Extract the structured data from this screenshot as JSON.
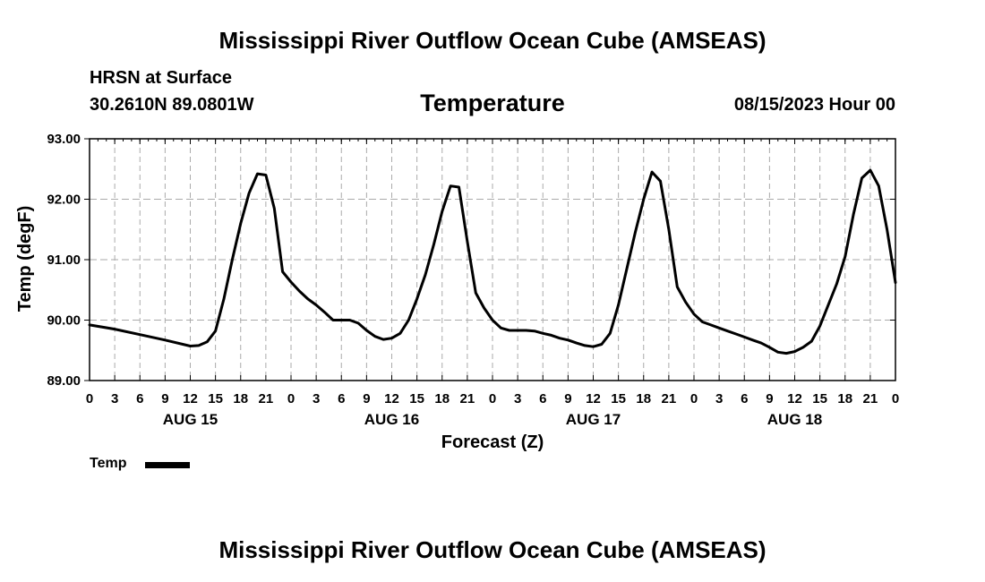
{
  "header": {
    "main_title": "Mississippi River Outflow Ocean Cube (AMSEAS)",
    "footer_title": "Mississippi River Outflow Ocean Cube (AMSEAS)",
    "station_name": "HRSN at Surface",
    "station_coords": "30.2610N  89.0801W",
    "run_time": "08/15/2023 Hour 00"
  },
  "chart_data": {
    "type": "line",
    "title": "Temperature",
    "xlabel": "Forecast (Z)",
    "ylabel": "Temp (degF)",
    "ylim": [
      89.0,
      93.0
    ],
    "xlim_hours": [
      0,
      96
    ],
    "y_ticks": [
      "89.00",
      "90.00",
      "91.00",
      "92.00",
      "93.00"
    ],
    "x_tick_labels": [
      "0",
      "3",
      "6",
      "9",
      "12",
      "15",
      "18",
      "21",
      "0",
      "3",
      "6",
      "9",
      "12",
      "15",
      "18",
      "21",
      "0",
      "3",
      "6",
      "9",
      "12",
      "15",
      "18",
      "21",
      "0",
      "3",
      "6",
      "9",
      "12",
      "15",
      "18",
      "21",
      "0"
    ],
    "day_labels": [
      {
        "label": "AUG 15",
        "hour": 12
      },
      {
        "label": "AUG 16",
        "hour": 36
      },
      {
        "label": "AUG 17",
        "hour": 60
      },
      {
        "label": "AUG 18",
        "hour": 84
      }
    ],
    "grid": true,
    "legend": {
      "position": "bottom-left",
      "entries": [
        "Temp"
      ]
    },
    "series": [
      {
        "name": "Temp",
        "color": "#000000",
        "x_hours": [
          0,
          3,
          6,
          9,
          12,
          13,
          14,
          15,
          16,
          17,
          18,
          19,
          20,
          21,
          22,
          23,
          24,
          25,
          26,
          27,
          28,
          29,
          30,
          31,
          32,
          33,
          34,
          35,
          36,
          37,
          38,
          39,
          40,
          41,
          42,
          43,
          44,
          45,
          46,
          47,
          48,
          49,
          50,
          51,
          52,
          53,
          54,
          55,
          56,
          57,
          58,
          59,
          60,
          61,
          62,
          63,
          64,
          65,
          66,
          67,
          68,
          69,
          70,
          71,
          72,
          73,
          74,
          75,
          76,
          77,
          78,
          79,
          80,
          81,
          82,
          83,
          84,
          85,
          86,
          87,
          88,
          89,
          90,
          91,
          92,
          93,
          94,
          95,
          96
        ],
        "values": [
          89.92,
          89.85,
          89.76,
          89.67,
          89.57,
          89.58,
          89.64,
          89.82,
          90.35,
          91.0,
          91.6,
          92.1,
          92.42,
          92.4,
          91.85,
          90.8,
          90.63,
          90.48,
          90.35,
          90.25,
          90.13,
          90.0,
          90.0,
          90.0,
          89.95,
          89.83,
          89.73,
          89.68,
          89.7,
          89.78,
          90.0,
          90.35,
          90.75,
          91.25,
          91.8,
          92.22,
          92.2,
          91.3,
          90.45,
          90.2,
          90.0,
          89.87,
          89.83,
          89.83,
          89.83,
          89.82,
          89.78,
          89.75,
          89.7,
          89.67,
          89.62,
          89.58,
          89.56,
          89.6,
          89.78,
          90.25,
          90.85,
          91.45,
          92.0,
          92.45,
          92.3,
          91.5,
          90.55,
          90.3,
          90.1,
          89.97,
          89.92,
          89.87,
          89.82,
          89.77,
          89.72,
          89.67,
          89.62,
          89.55,
          89.47,
          89.45,
          89.48,
          89.55,
          89.65,
          89.9,
          90.25,
          90.6,
          91.05,
          91.75,
          92.35,
          92.48,
          92.22,
          91.5,
          90.62
        ]
      }
    ]
  }
}
